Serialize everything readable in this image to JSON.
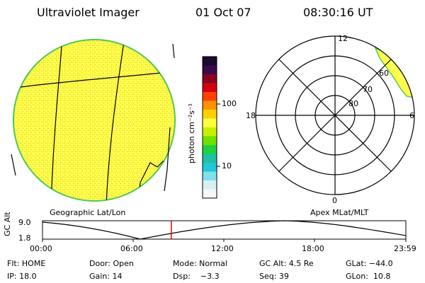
{
  "header": {
    "title": "Ultraviolet Imager",
    "date": "01 Oct 07",
    "time": "08:30:16 UT"
  },
  "panels": {
    "left_label": "Geographic Lat/Lon",
    "right_label": "Apex MLat/MLT"
  },
  "colorbar": {
    "unit_label": "photon cm⁻²s⁻¹",
    "ticks": [
      "100",
      "10"
    ],
    "colors": [
      "#1a0a2e",
      "#3a0a4a",
      "#8a0020",
      "#d40010",
      "#ff4000",
      "#ff9000",
      "#ffd000",
      "#ffff40",
      "#c8f000",
      "#70e000",
      "#20d040",
      "#20c0a0",
      "#20c8d8",
      "#80e0ec",
      "#d8f0f4",
      "#f4f8fa"
    ]
  },
  "polar": {
    "mlt_labels": {
      "top": "12",
      "left": "18",
      "right": "6",
      "bottom": "0"
    },
    "ring_labels": [
      "60",
      "70",
      "80"
    ]
  },
  "timeline": {
    "axis_title": "GC Alt",
    "y_ticks": [
      "9.0",
      "1.8"
    ],
    "x_ticks": [
      "00:00",
      "06:00",
      "12:00",
      "18:00",
      "23:59"
    ],
    "current_time_fraction": 0.3543
  },
  "info": {
    "row1": [
      "Flt: HOME",
      "Door: Open",
      "Mode: Normal",
      "GC Alt: 4.5 Re",
      "GLat: −44.0"
    ],
    "row2": [
      "IP: 18.0",
      "Gain: 14",
      "Dsp:    −3.3",
      "Seq: 39",
      "GLon:  10.8"
    ]
  }
}
